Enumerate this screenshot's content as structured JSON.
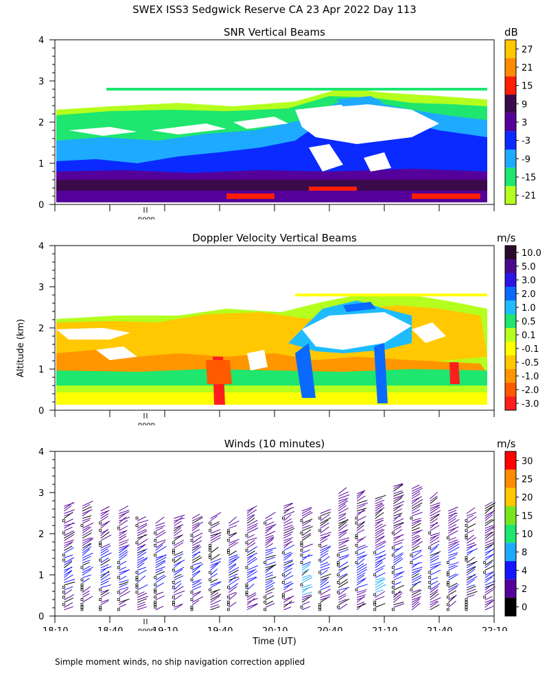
{
  "page": {
    "title": "SWEX ISS3 Sedgwick Reserve CA  23 Apr 2022 Day 113",
    "ylabel": "Altitude (km)",
    "xlabel": "Time (UT)",
    "footnote": "Simple moment winds, no ship navigation correction applied",
    "noon_label": "noon"
  },
  "chart_data": [
    {
      "type": "heatmap",
      "title": "SNR Vertical Beams",
      "unit": "dB",
      "ylim": [
        0,
        4
      ],
      "yticks": [
        "0",
        "1",
        "2",
        "3",
        "4"
      ],
      "colorbar": {
        "labels": [
          "27",
          "21",
          "15",
          "9",
          "3",
          "-3",
          "-9",
          "-15",
          "-21"
        ],
        "colors": [
          "#ffc800",
          "#ff8c00",
          "#ff1e00",
          "#3a0a4a",
          "#55009a",
          "#0a2aff",
          "#1eaaff",
          "#1ee66e",
          "#b4ff1e"
        ]
      },
      "colors": {
        "white": "#ffffff",
        "light": "#b4ff1e",
        "green": "#1ee66e",
        "cyan": "#1eaaff",
        "blue": "#0a2aff",
        "purple": "#55009a",
        "dark": "#3a0a4a",
        "red": "#ff1e00",
        "orange": "#ff8c00"
      }
    },
    {
      "type": "heatmap",
      "title": "Doppler Velocity Vertical Beams",
      "unit": "m/s",
      "ylim": [
        0,
        4
      ],
      "yticks": [
        "0",
        "1",
        "2",
        "3",
        "4"
      ],
      "colorbar": {
        "labels": [
          "10.0",
          "5.0",
          "3.0",
          "2.0",
          "1.0",
          "0.5",
          "0.1",
          "-0.1",
          "-0.5",
          "-1.0",
          "-2.0",
          "-3.0"
        ],
        "colors": [
          "#2a0a2a",
          "#4a0a8c",
          "#2a14e6",
          "#0a6aff",
          "#1ebcff",
          "#1ee66e",
          "#b4ff1e",
          "#ffff00",
          "#ffc800",
          "#ff9600",
          "#ff5a00",
          "#ff1e1e"
        ]
      },
      "colors": {
        "white": "#ffffff",
        "yellow": "#ffff00",
        "lime": "#b4ff1e",
        "gold": "#ffc800",
        "orange": "#ff9600",
        "darkorange": "#ff5a00",
        "red": "#ff1e1e",
        "green": "#1ee66e",
        "cyan": "#1ebcff",
        "blue": "#0a6aff"
      }
    },
    {
      "type": "scatter",
      "title": "Winds (10 minutes)",
      "unit": "m/s",
      "ylim": [
        0,
        4
      ],
      "yticks": [
        "0",
        "1",
        "2",
        "3",
        "4"
      ],
      "x_tick_labels": [
        "18:10",
        "18:40",
        "19:10",
        "19:40",
        "20:10",
        "20:40",
        "21:10",
        "21:40",
        "22:10"
      ],
      "x_range_minutes": [
        0,
        240
      ],
      "x_tick_every_minutes": 30,
      "colorbar": {
        "labels": [
          "30",
          "25",
          "20",
          "15",
          "10",
          "8",
          "4",
          "2",
          "0"
        ],
        "colors": [
          "#ff0000",
          "#ff8c00",
          "#ffc800",
          "#78e61e",
          "#1ee66e",
          "#1eaaff",
          "#1414ff",
          "#55009a",
          "#000000"
        ]
      },
      "columns_minutes": [
        5,
        15,
        25,
        35,
        45,
        55,
        65,
        75,
        85,
        95,
        105,
        115,
        125,
        135,
        145,
        155,
        165,
        175,
        185,
        195,
        205,
        215,
        225,
        235
      ],
      "column_tops_km": [
        2.7,
        2.7,
        2.6,
        2.6,
        2.4,
        2.3,
        2.4,
        2.4,
        2.4,
        2.3,
        2.6,
        2.4,
        2.7,
        2.6,
        2.5,
        3.0,
        3.0,
        2.9,
        3.2,
        3.1,
        2.9,
        2.6,
        2.5,
        2.7
      ]
    }
  ]
}
